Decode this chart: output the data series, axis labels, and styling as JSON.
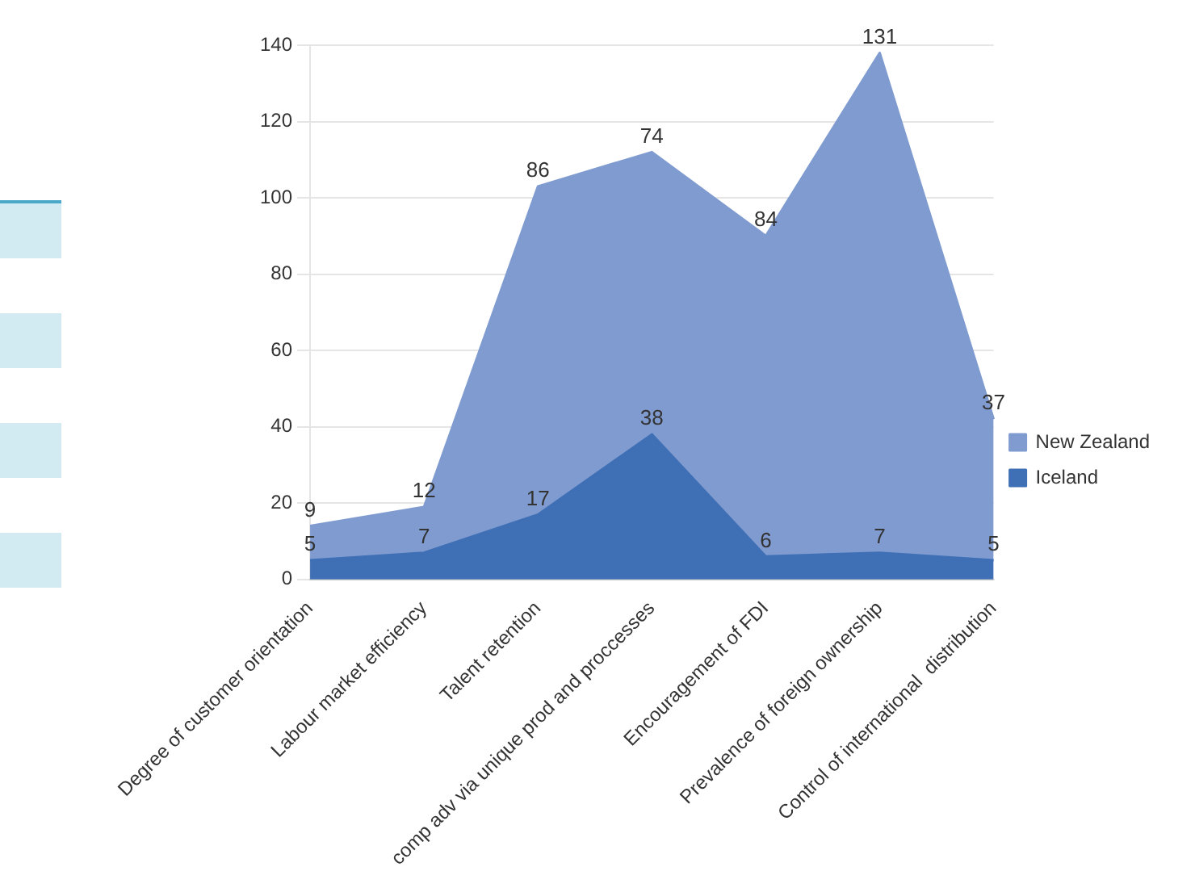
{
  "chart_data": {
    "type": "area",
    "stacked": true,
    "categories": [
      "Degree of customer orientation",
      "Labour market efficiency",
      "Talent retention",
      "comp adv via unique prod and proccesses",
      "Encouragement of FDI",
      "Prevalence of foreign ownership",
      "Control of international  distribution"
    ],
    "series": [
      {
        "name": "Iceland",
        "color": "#3f6fb5",
        "values": [
          5,
          7,
          17,
          38,
          6,
          7,
          5
        ]
      },
      {
        "name": "New Zealand",
        "color": "#7f9bd0",
        "values": [
          9,
          12,
          86,
          74,
          84,
          131,
          37
        ]
      }
    ],
    "ylim": [
      0,
      140
    ],
    "yticks": [
      0,
      20,
      40,
      60,
      80,
      100,
      120,
      140
    ],
    "grid": "y",
    "legend": "right",
    "marker": "none",
    "data_labels": true
  }
}
